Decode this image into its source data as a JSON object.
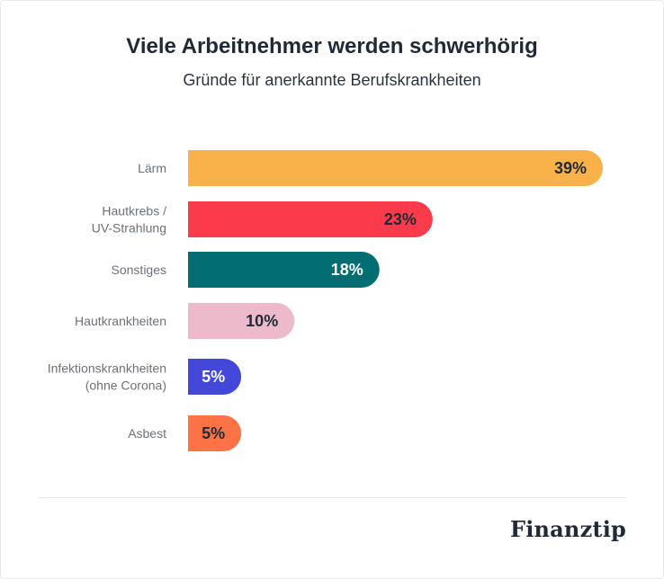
{
  "header": {
    "title": "Viele Arbeitnehmer werden schwerhörig",
    "subtitle": "Gründe für anerkannte Berufskrankheiten"
  },
  "branding": {
    "logo_text": "Finanztip"
  },
  "chart_data": {
    "type": "bar",
    "orientation": "horizontal",
    "title": "Viele Arbeitnehmer werden schwerhörig",
    "subtitle": "Gründe für anerkannte Berufskrankheiten",
    "categories": [
      [
        "Lärm"
      ],
      [
        "Hautkrebs /",
        "UV-Strahlung"
      ],
      [
        "Sonstiges"
      ],
      [
        "Hautkrankheiten"
      ],
      [
        "Infektionskrankheiten",
        "(ohne Corona)"
      ],
      [
        "Asbest"
      ]
    ],
    "values": [
      39,
      23,
      18,
      10,
      5,
      5
    ],
    "value_labels": [
      "39%",
      "23%",
      "18%",
      "10%",
      "5%",
      "5%"
    ],
    "unit": "%",
    "xlim": [
      0,
      39
    ],
    "colors": [
      "#f8b249",
      "#fb3a4c",
      "#036d74",
      "#ecbacb",
      "#4448d8",
      "#fd7346"
    ],
    "label_colors": [
      "#1f2a36",
      "#1f2a36",
      "#ffffff",
      "#1f2a36",
      "#ffffff",
      "#1f2a36"
    ],
    "grid": false,
    "legend": "none"
  }
}
